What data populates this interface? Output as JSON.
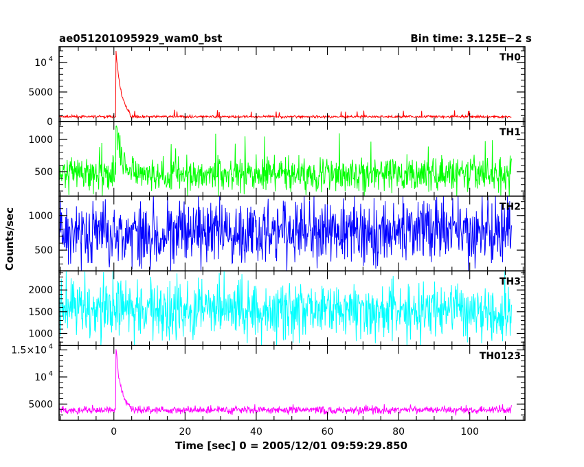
{
  "header": {
    "object_name": "ae051201095929_wam0_bst",
    "bin_time": "Bin time: 3.125E−2 s"
  },
  "chart_data": {
    "type": "line",
    "ylabel": "Counts/sec",
    "xlabel": "Time [sec] 0 = 2005/12/01 09:59:29.850",
    "xlim": [
      -15.4,
      115.5
    ],
    "x_ticks": [
      {
        "value": 0,
        "label": "0"
      },
      {
        "value": 20,
        "label": "20"
      },
      {
        "value": 40,
        "label": "40"
      },
      {
        "value": 60,
        "label": "60"
      },
      {
        "value": 80,
        "label": "80"
      },
      {
        "value": 100,
        "label": "100"
      }
    ],
    "data_range": [
      -15.4,
      111.8
    ],
    "panels": [
      {
        "name": "TH0",
        "color": "#ff0000",
        "ylim": [
          0,
          12700
        ],
        "y_ticks": [
          {
            "value": 0,
            "label": "0"
          },
          {
            "value": 5000,
            "label": "5000"
          },
          {
            "value": 10000,
            "label": "10",
            "sup": "4"
          }
        ],
        "baseline": 800,
        "noise": 150,
        "burst": {
          "start": 0.5,
          "peak": 12700,
          "decay": 1.5,
          "end": 4.5
        },
        "outliers_up": 2000
      },
      {
        "name": "TH1",
        "color": "#00ff00",
        "ylim": [
          120,
          1280
        ],
        "y_ticks": [
          {
            "value": 500,
            "label": "500"
          },
          {
            "value": 1000,
            "label": "1000"
          }
        ],
        "baseline": 460,
        "noise": 190,
        "burst": {
          "start": 0.5,
          "peak": 1280,
          "decay": 1.5,
          "end": 4.5
        },
        "outliers_up": 1100
      },
      {
        "name": "TH2",
        "color": "#0000ff",
        "ylim": [
          200,
          1280
        ],
        "y_ticks": [
          {
            "value": 500,
            "label": "500"
          },
          {
            "value": 1000,
            "label": "1000"
          }
        ],
        "baseline": 760,
        "noise": 330,
        "outliers_up": 1280
      },
      {
        "name": "TH3",
        "color": "#00ffff",
        "ylim": [
          720,
          2440
        ],
        "y_ticks": [
          {
            "value": 1000,
            "label": "1000"
          },
          {
            "value": 1500,
            "label": "1500"
          },
          {
            "value": 2000,
            "label": "2000"
          }
        ],
        "baseline": 1550,
        "noise": 460,
        "outliers_up": 2440
      },
      {
        "name": "TH0123",
        "color": "#ff00ff",
        "ylim": [
          2000,
          15800
        ],
        "y_ticks": [
          {
            "value": 5000,
            "label": "5000"
          },
          {
            "value": 10000,
            "label": "10",
            "sup": "4"
          },
          {
            "value": 15000,
            "label": "1.5×10",
            "sup": "4"
          }
        ],
        "baseline": 3900,
        "noise": 500,
        "burst": {
          "start": 0.5,
          "peak": 15800,
          "decay": 1.4,
          "end": 4.5
        },
        "outliers_up": 5000
      }
    ]
  }
}
